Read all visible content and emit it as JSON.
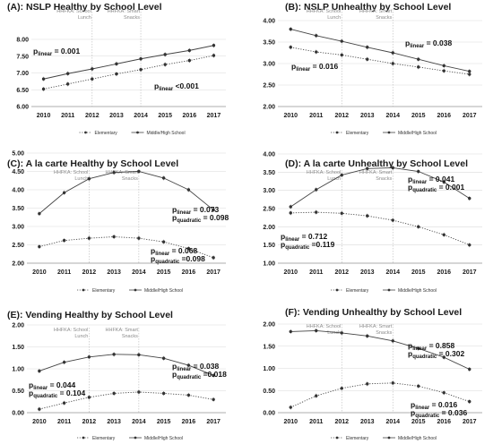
{
  "chart_data": [
    {
      "type": "line",
      "title": "(A): NSLP Healthy  by School Level",
      "x": [
        2010,
        2011,
        2012,
        2013,
        2014,
        2015,
        2016,
        2017
      ],
      "ylim": [
        6.0,
        8.0
      ],
      "yticks": [
        "6.00",
        "6.50",
        "7.00",
        "7.50",
        "8.00"
      ],
      "series": [
        {
          "name": "Elementary",
          "style": "dotted",
          "values": [
            6.52,
            6.67,
            6.82,
            6.97,
            7.1,
            7.25,
            7.37,
            7.52
          ]
        },
        {
          "name": "Middle/High School",
          "style": "solid",
          "values": [
            6.82,
            6.98,
            7.12,
            7.27,
            7.42,
            7.55,
            7.67,
            7.82
          ]
        }
      ],
      "events": [
        {
          "x": 2012,
          "lines": [
            "HHFKA: School",
            "Lunch"
          ]
        },
        {
          "x": 2014,
          "lines": [
            "HHFKA:  Smart",
            "Snacks"
          ]
        }
      ],
      "stats": [
        [
          {
            "p": "p",
            "sub": "linear",
            "rest": " = 0.001"
          }
        ],
        [
          {
            "p": "p",
            "sub": "linear",
            "rest": " <0.001"
          }
        ]
      ]
    },
    {
      "type": "line",
      "title": "(B): NSLP Unhealthy  by School Level",
      "x": [
        2010,
        2011,
        2012,
        2013,
        2014,
        2015,
        2016,
        2017
      ],
      "ylim": [
        2.0,
        4.0
      ],
      "yticks": [
        "2.00",
        "2.50",
        "3.00",
        "3.50",
        "4.00"
      ],
      "series": [
        {
          "name": "Elementary",
          "style": "dotted",
          "values": [
            3.38,
            3.27,
            3.2,
            3.1,
            3.0,
            2.92,
            2.83,
            2.75
          ]
        },
        {
          "name": "Middle/High School",
          "style": "solid",
          "values": [
            3.8,
            3.65,
            3.52,
            3.38,
            3.25,
            3.1,
            2.95,
            2.82
          ]
        }
      ],
      "events": [
        {
          "x": 2012,
          "lines": [
            "HHFKA: School",
            "Lunch"
          ]
        },
        {
          "x": 2014,
          "lines": [
            "HHFKA:  Smart",
            "Snacks"
          ]
        }
      ],
      "stats": [
        [
          {
            "p": "p",
            "sub": "linear",
            "rest": " = 0.038"
          }
        ],
        [
          {
            "p": "p",
            "sub": "linear",
            "rest": " = 0.016"
          }
        ]
      ]
    },
    {
      "type": "line",
      "title": "(C): A la carte Healthy by School Level",
      "x": [
        2010,
        2011,
        2012,
        2013,
        2014,
        2015,
        2016,
        2017
      ],
      "ylim": [
        2.0,
        5.0
      ],
      "yticks": [
        "2.00",
        "2.50",
        "3.00",
        "3.50",
        "4.00",
        "4.50",
        "5.00"
      ],
      "series": [
        {
          "name": "Elementary",
          "style": "dotted",
          "values": [
            2.45,
            2.62,
            2.68,
            2.72,
            2.68,
            2.58,
            2.4,
            2.15
          ]
        },
        {
          "name": "Middle/High School",
          "style": "solid",
          "values": [
            3.35,
            3.92,
            4.3,
            4.47,
            4.5,
            4.32,
            4.0,
            3.45
          ]
        }
      ],
      "events": [
        {
          "x": 2012,
          "lines": [
            "HHFKA: School",
            "Lunch"
          ]
        },
        {
          "x": 2014,
          "lines": [
            "HHFKA:  Smart",
            "Snacks"
          ]
        }
      ],
      "stats": [
        [
          {
            "p": "p",
            "sub": "linear",
            "rest": " = 0.073"
          },
          {
            "p": "p",
            "sub": "quadratic",
            "rest": " = 0.098"
          }
        ],
        [
          {
            "p": "p",
            "sub": "linear",
            "rest": " = 0.068"
          },
          {
            "p": "p",
            "sub": "quadratic",
            "rest": " =0.098"
          }
        ]
      ]
    },
    {
      "type": "line",
      "title": "(D): A la carte Unhealthy  by School Level",
      "x": [
        2010,
        2011,
        2012,
        2013,
        2014,
        2015,
        2016,
        2017
      ],
      "ylim": [
        1.0,
        4.0
      ],
      "yticks": [
        "1.00",
        "1.50",
        "2.00",
        "2.50",
        "3.00",
        "3.50",
        "4.00"
      ],
      "series": [
        {
          "name": "Elementary",
          "style": "dotted",
          "values": [
            2.38,
            2.4,
            2.37,
            2.3,
            2.18,
            2.0,
            1.78,
            1.5
          ]
        },
        {
          "name": "Middle/High School",
          "style": "solid",
          "values": [
            2.55,
            3.02,
            3.42,
            3.6,
            3.62,
            3.52,
            3.23,
            2.78
          ]
        }
      ],
      "events": [
        {
          "x": 2012,
          "lines": [
            "HHFKA: School",
            "Lunch"
          ]
        },
        {
          "x": 2014,
          "lines": [
            "HHFKA:  Smart",
            "Snacks"
          ]
        }
      ],
      "stats": [
        [
          {
            "p": "p",
            "sub": "linear",
            "rest": " = 0.041"
          },
          {
            "p": "p",
            "sub": "quadratic",
            "rest": " = 0.001"
          }
        ],
        [
          {
            "p": "p",
            "sub": "linear",
            "rest": " = 0.712"
          },
          {
            "p": "p",
            "sub": "quadratic",
            "rest": " =0.119"
          }
        ]
      ]
    },
    {
      "type": "line",
      "title": "(E): Vending Healthy by School Level",
      "x": [
        2010,
        2011,
        2012,
        2013,
        2014,
        2015,
        2016,
        2017
      ],
      "ylim": [
        0.0,
        2.0
      ],
      "yticks": [
        "0.00",
        "0.50",
        "1.00",
        "1.50",
        "2.00"
      ],
      "series": [
        {
          "name": "Elementary",
          "style": "dotted",
          "values": [
            0.08,
            0.22,
            0.35,
            0.44,
            0.47,
            0.44,
            0.4,
            0.3
          ]
        },
        {
          "name": "Middle/High School",
          "style": "solid",
          "values": [
            0.95,
            1.15,
            1.27,
            1.33,
            1.32,
            1.24,
            1.08,
            0.85
          ]
        }
      ],
      "events": [
        {
          "x": 2012,
          "lines": [
            "HHFKA: School",
            "Lunch"
          ]
        },
        {
          "x": 2014,
          "lines": [
            "HHFKA:  Smart",
            "Snacks"
          ]
        }
      ],
      "stats": [
        [
          {
            "p": "p",
            "sub": "linear",
            "rest": " = 0.038"
          },
          {
            "p": "p",
            "sub": "quadratic",
            "rest": " =0.018"
          }
        ],
        [
          {
            "p": "p",
            "sub": "linear",
            "rest": " = 0.044"
          },
          {
            "p": "p",
            "sub": "quadratic",
            "rest": " = 0.104"
          }
        ]
      ]
    },
    {
      "type": "line",
      "title": "(F): Vending Unhealthy  by School Level",
      "x": [
        2010,
        2011,
        2012,
        2013,
        2014,
        2015,
        2016,
        2017
      ],
      "ylim": [
        0.0,
        2.0
      ],
      "yticks": [
        "0.00",
        "0.50",
        "1.00",
        "1.50",
        "2.00"
      ],
      "series": [
        {
          "name": "Elementary",
          "style": "dotted",
          "values": [
            0.12,
            0.38,
            0.55,
            0.65,
            0.67,
            0.6,
            0.45,
            0.25
          ]
        },
        {
          "name": "Middle/High School",
          "style": "solid",
          "values": [
            1.83,
            1.85,
            1.8,
            1.73,
            1.62,
            1.45,
            1.25,
            0.98
          ]
        }
      ],
      "events": [
        {
          "x": 2012,
          "lines": [
            "HHFKA: School",
            "Lunch"
          ]
        },
        {
          "x": 2014,
          "lines": [
            "HHFKA:  Smart",
            "Snacks"
          ]
        }
      ],
      "stats": [
        [
          {
            "p": "p",
            "sub": "linear",
            "rest": " = 0.858"
          },
          {
            "p": "p",
            "sub": "quadratic",
            "rest": " = 0.302"
          }
        ],
        [
          {
            "p": "p",
            "sub": "linear",
            "rest": " = 0.016"
          },
          {
            "p": "p",
            "sub": "quadratic",
            "rest": " = 0.036"
          }
        ]
      ]
    }
  ]
}
